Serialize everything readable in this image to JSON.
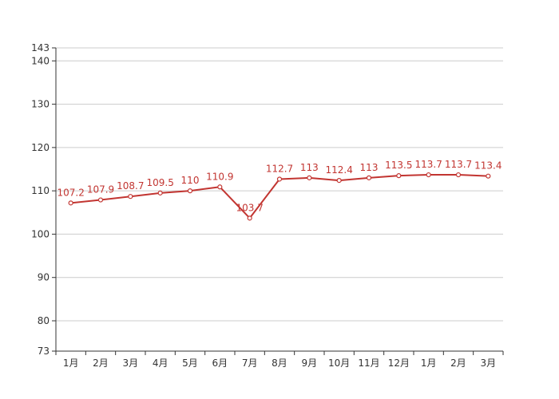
{
  "chart_data": {
    "type": "line",
    "categories": [
      "1月",
      "2月",
      "3月",
      "4月",
      "5月",
      "6月",
      "7月",
      "8月",
      "9月",
      "10月",
      "11月",
      "12月",
      "1月",
      "2月",
      "3月"
    ],
    "series": [
      {
        "values": [
          107.2,
          107.9,
          108.7,
          109.5,
          110,
          110.9,
          103.7,
          112.7,
          113,
          112.4,
          113,
          113.5,
          113.7,
          113.7,
          113.4
        ],
        "labels": [
          "107.2",
          "107.9",
          "108.7",
          "109.5",
          "110",
          "110.9",
          "103.7",
          "112.7",
          "113",
          "112.4",
          "113",
          "113.5",
          "113.7",
          "113.7",
          "113.4"
        ]
      }
    ],
    "ylim": [
      73,
      143
    ],
    "yticks": [
      73,
      80,
      90,
      100,
      110,
      120,
      130,
      140,
      143
    ],
    "ytick_labels": [
      "73",
      "80",
      "90",
      "100",
      "110",
      "120",
      "130",
      "140",
      "143"
    ],
    "grid": true,
    "colors": {
      "line": "#c23531",
      "grid": "#cccccc",
      "axis": "#333333"
    }
  }
}
